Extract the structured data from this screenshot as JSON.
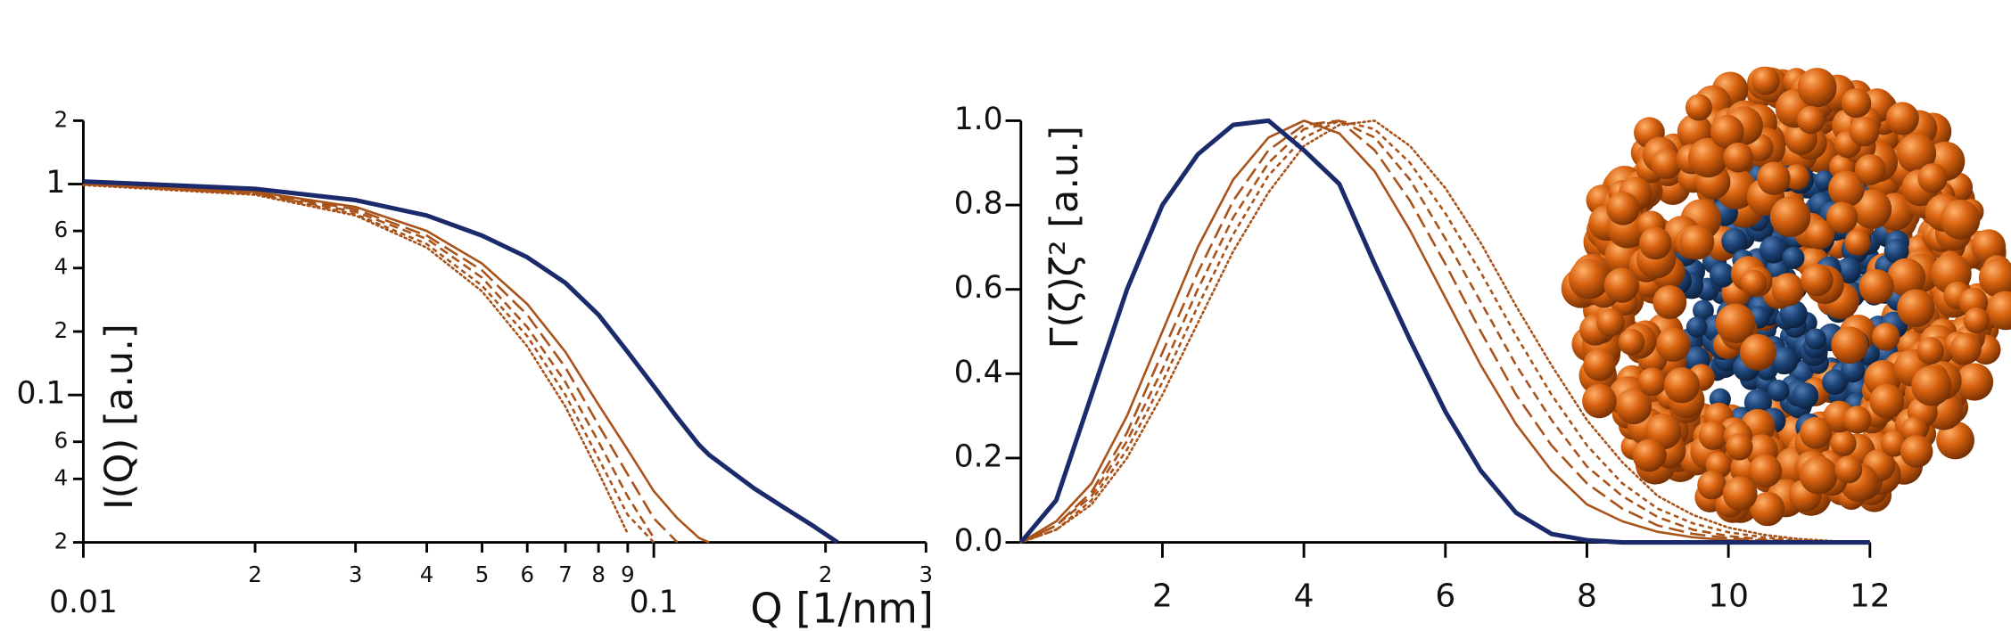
{
  "chart_data": [
    {
      "type": "line",
      "xlabel": "Q [1/nm]",
      "ylabel": "I(Q) [a.u.]",
      "xscale": "log",
      "yscale": "log",
      "xlim": [
        0.01,
        0.3
      ],
      "ylim": [
        0.02,
        2
      ],
      "xticks": [
        0.01,
        {
          "value": 0.02,
          "label": "2"
        },
        {
          "value": 0.03,
          "label": "3"
        },
        {
          "value": 0.04,
          "label": "4"
        },
        {
          "value": 0.05,
          "label": "5"
        },
        {
          "value": 0.06,
          "label": "6"
        },
        {
          "value": 0.07,
          "label": "7"
        },
        {
          "value": 0.08,
          "label": "8"
        },
        {
          "value": 0.09,
          "label": "9"
        },
        0.1,
        {
          "value": 0.2,
          "label": "2"
        },
        {
          "value": 0.3,
          "label": "3"
        }
      ],
      "yticks": [
        {
          "value": 0.02,
          "label": "2"
        },
        {
          "value": 0.04,
          "label": "4"
        },
        {
          "value": 0.06,
          "label": "6"
        },
        0.1,
        {
          "value": 0.2,
          "label": "2"
        },
        {
          "value": 0.4,
          "label": "4"
        },
        {
          "value": 0.6,
          "label": "6"
        },
        1,
        {
          "value": 2,
          "label": "2"
        }
      ],
      "x": [
        0.01,
        0.02,
        0.03,
        0.04,
        0.05,
        0.06,
        0.07,
        0.08,
        0.09,
        0.1,
        0.11,
        0.12,
        0.125,
        0.15,
        0.17,
        0.19,
        0.21
      ],
      "series": [
        {
          "color": "#1b2a6b",
          "dash": "solid",
          "width": "thick",
          "values": [
            1.03,
            0.95,
            0.84,
            0.71,
            0.57,
            0.45,
            0.34,
            0.24,
            0.16,
            0.11,
            0.078,
            0.058,
            0.052,
            0.036,
            0.029,
            0.024,
            0.02
          ]
        },
        {
          "color": "#a9531a",
          "dash": "solid",
          "width": "thin",
          "values": [
            1.0,
            0.92,
            0.78,
            0.6,
            0.42,
            0.27,
            0.16,
            0.09,
            0.055,
            0.035,
            0.026,
            0.021,
            0.02,
            null,
            null,
            null,
            null
          ]
        },
        {
          "color": "#a9531a",
          "dash": "long-dash",
          "width": "thin",
          "values": [
            1.0,
            0.91,
            0.76,
            0.57,
            0.39,
            0.24,
            0.135,
            0.072,
            0.042,
            0.026,
            0.02,
            null,
            null,
            null,
            null,
            null,
            null
          ]
        },
        {
          "color": "#a9531a",
          "dash": "dash",
          "width": "thin",
          "values": [
            1.0,
            0.9,
            0.74,
            0.55,
            0.36,
            0.21,
            0.115,
            0.06,
            0.033,
            0.021,
            null,
            null,
            null,
            null,
            null,
            null,
            null
          ]
        },
        {
          "color": "#a9531a",
          "dash": "short-dash",
          "width": "thin",
          "values": [
            1.0,
            0.9,
            0.72,
            0.52,
            0.33,
            0.19,
            0.1,
            0.05,
            0.027,
            0.02,
            null,
            null,
            null,
            null,
            null,
            null,
            null
          ]
        },
        {
          "color": "#a9531a",
          "dash": "dot",
          "width": "thin",
          "values": [
            0.99,
            0.89,
            0.71,
            0.5,
            0.31,
            0.17,
            0.088,
            0.043,
            0.022,
            null,
            null,
            null,
            null,
            null,
            null,
            null,
            null
          ]
        }
      ]
    },
    {
      "type": "line",
      "ylabel": "Γ(ζ)ζ² [a.u.]",
      "xlim": [
        0,
        12
      ],
      "ylim": [
        0,
        1
      ],
      "xticks": [
        2,
        4,
        6,
        8,
        10,
        12
      ],
      "yticks": [
        {
          "value": 0,
          "label": "0.0"
        },
        0.2,
        0.4,
        0.6,
        0.8,
        {
          "value": 1,
          "label": "1.0"
        }
      ],
      "x": [
        0,
        0.5,
        1,
        1.5,
        2,
        2.5,
        3,
        3.5,
        4,
        4.5,
        5,
        5.5,
        6,
        6.5,
        7,
        7.5,
        8,
        8.5,
        9,
        9.5,
        10,
        10.5,
        11,
        11.5,
        12
      ],
      "series": [
        {
          "color": "#1b2a6b",
          "dash": "solid",
          "width": "thick",
          "values": [
            0,
            0.1,
            0.35,
            0.6,
            0.8,
            0.92,
            0.99,
            1.0,
            0.93,
            0.85,
            0.66,
            0.48,
            0.31,
            0.17,
            0.07,
            0.02,
            0.005,
            0,
            0,
            0,
            0,
            0,
            0,
            0,
            0
          ]
        },
        {
          "color": "#a9531a",
          "dash": "solid",
          "width": "thin",
          "values": [
            0,
            0.05,
            0.14,
            0.3,
            0.5,
            0.7,
            0.86,
            0.96,
            1.0,
            0.97,
            0.88,
            0.74,
            0.58,
            0.42,
            0.28,
            0.17,
            0.09,
            0.05,
            0.025,
            0.012,
            0.005,
            0.002,
            0.001,
            0,
            0
          ]
        },
        {
          "color": "#a9531a",
          "dash": "long-dash",
          "width": "thin",
          "values": [
            0,
            0.04,
            0.12,
            0.26,
            0.45,
            0.64,
            0.81,
            0.93,
            0.99,
            1.0,
            0.93,
            0.81,
            0.66,
            0.5,
            0.35,
            0.23,
            0.14,
            0.08,
            0.04,
            0.02,
            0.01,
            0.004,
            0.002,
            0.001,
            0
          ]
        },
        {
          "color": "#a9531a",
          "dash": "dash",
          "width": "thin",
          "values": [
            0,
            0.04,
            0.11,
            0.24,
            0.41,
            0.6,
            0.77,
            0.9,
            0.98,
            1.0,
            0.96,
            0.86,
            0.72,
            0.57,
            0.42,
            0.29,
            0.18,
            0.11,
            0.06,
            0.03,
            0.015,
            0.007,
            0.003,
            0.001,
            0
          ]
        },
        {
          "color": "#a9531a",
          "dash": "short-dash",
          "width": "thin",
          "values": [
            0,
            0.03,
            0.1,
            0.22,
            0.38,
            0.56,
            0.73,
            0.87,
            0.96,
            1.0,
            0.98,
            0.9,
            0.78,
            0.64,
            0.49,
            0.35,
            0.23,
            0.14,
            0.08,
            0.045,
            0.024,
            0.012,
            0.005,
            0.002,
            0
          ]
        },
        {
          "color": "#a9531a",
          "dash": "dot",
          "width": "thin",
          "values": [
            0,
            0.03,
            0.09,
            0.2,
            0.35,
            0.52,
            0.69,
            0.83,
            0.94,
            0.99,
            1.0,
            0.94,
            0.84,
            0.71,
            0.56,
            0.42,
            0.29,
            0.19,
            0.11,
            0.065,
            0.035,
            0.018,
            0.008,
            0.003,
            0
          ]
        }
      ]
    }
  ]
}
